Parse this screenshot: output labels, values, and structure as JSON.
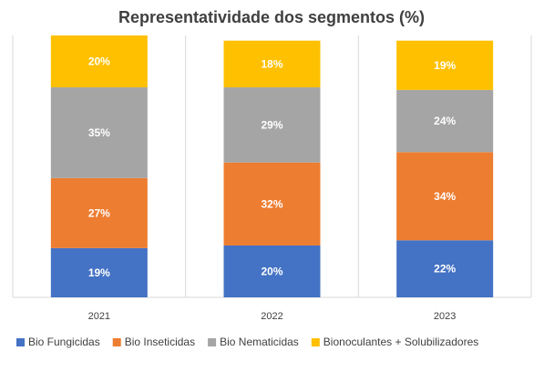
{
  "chart_data": {
    "type": "bar",
    "stacked": true,
    "title": "Representatividade dos segmentos (%)",
    "categories": [
      "2021",
      "2022",
      "2023"
    ],
    "series": [
      {
        "name": "Bio Fungicidas",
        "values": [
          19,
          20,
          22
        ],
        "labels": [
          "19%",
          "20%",
          "22%"
        ],
        "color": "#4472C4"
      },
      {
        "name": "Bio Inseticidas",
        "values": [
          27,
          32,
          34
        ],
        "labels": [
          "27%",
          "32%",
          "34%"
        ],
        "color": "#ED7D31"
      },
      {
        "name": "Bio Nematicidas",
        "values": [
          35,
          29,
          24
        ],
        "labels": [
          "35%",
          "29%",
          "24%"
        ],
        "color": "#A5A5A5"
      },
      {
        "name": "Bionoculantes + Solubilizadores",
        "values": [
          20,
          18,
          19
        ],
        "labels": [
          "20%",
          "18%",
          "19%"
        ],
        "color": "#FFC000"
      }
    ],
    "ylim": [
      0,
      101
    ],
    "grid": "vertical",
    "legend": "bottom",
    "data_label_color": "#FFFFFF",
    "grid_color": "#D9D9D9"
  }
}
